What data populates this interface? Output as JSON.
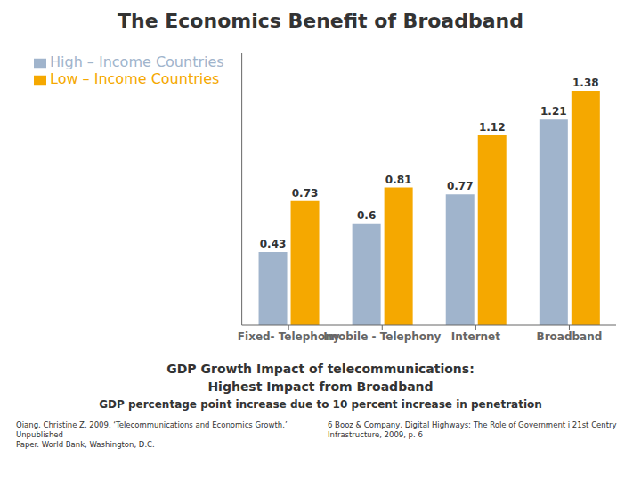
{
  "chart_data": {
    "type": "bar",
    "title": "The Economics Benefit of Broadband",
    "subtitle": [
      "GDP Growth Impact of telecommunications:",
      "Highest Impact from Broadband",
      "GDP percentage point increase due to 10 percent increase in penetration"
    ],
    "footnotes": [
      "Qiang, Christine Z. 2009. ‘Telecommunications and Economics Growth.’ Unpublished\nPaper. World Bank, Washington, D.C.",
      "6 Booz & Company, Digital Highways: The Role of Government i 21st Centry\nInfrastructure, 2009, p. 6"
    ],
    "categories": [
      "Fixed- Telephony",
      "Imobile - Telephony",
      "Internet",
      "Broadband"
    ],
    "series": [
      {
        "name": "High – Income Countries",
        "color": "#a0b4cc",
        "values": [
          0.43,
          0.6,
          0.77,
          1.21
        ]
      },
      {
        "name": "Low – Income Countries",
        "color": "#f5a800",
        "values": [
          0.73,
          0.81,
          1.12,
          1.38
        ]
      }
    ],
    "ylim": [
      0,
      1.6
    ],
    "grid": false,
    "legend": "upper left",
    "data_labels": true,
    "tick_labels": "x"
  }
}
